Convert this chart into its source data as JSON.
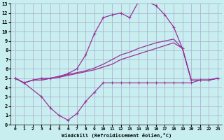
{
  "xlabel": "Windchill (Refroidissement éolien,°C)",
  "background_color": "#c8eef0",
  "grid_color": "#aaaacc",
  "line_color": "#993399",
  "xlim": [
    -0.5,
    23.5
  ],
  "ylim": [
    0,
    13
  ],
  "xticks": [
    0,
    1,
    2,
    3,
    4,
    5,
    6,
    7,
    8,
    9,
    10,
    11,
    12,
    13,
    14,
    15,
    16,
    17,
    18,
    19,
    20,
    21,
    22,
    23
  ],
  "yticks": [
    0,
    1,
    2,
    3,
    4,
    5,
    6,
    7,
    8,
    9,
    10,
    11,
    12,
    13
  ],
  "line1_x": [
    0,
    1,
    2,
    3,
    4,
    5,
    6,
    7,
    8,
    9,
    10,
    11,
    12,
    13,
    14,
    15,
    16,
    17,
    18,
    19,
    20,
    21,
    22,
    23
  ],
  "line1_y": [
    5.0,
    4.5,
    4.8,
    5.0,
    5.0,
    5.2,
    5.5,
    6.0,
    7.5,
    9.8,
    11.5,
    11.8,
    12.0,
    11.5,
    13.2,
    13.2,
    12.8,
    11.8,
    10.5,
    8.2,
    4.8,
    4.8,
    4.8,
    5.0
  ],
  "line2_x": [
    0,
    1,
    3,
    4,
    5,
    6,
    7,
    8,
    9,
    10,
    11,
    12,
    13,
    14,
    15,
    16,
    17,
    18,
    19,
    20,
    21,
    22,
    23
  ],
  "line2_y": [
    5.0,
    4.5,
    3.0,
    1.8,
    1.0,
    0.5,
    1.2,
    2.5,
    3.5,
    4.5,
    4.5,
    4.5,
    4.5,
    4.5,
    4.5,
    4.5,
    4.5,
    4.5,
    4.5,
    4.5,
    4.8,
    4.8,
    5.0
  ],
  "line3_x": [
    0,
    1,
    2,
    3,
    4,
    5,
    6,
    7,
    8,
    9,
    10,
    11,
    12,
    13,
    14,
    15,
    16,
    17,
    18,
    19,
    20,
    21,
    22,
    23
  ],
  "line3_y": [
    5.0,
    4.5,
    4.8,
    4.8,
    5.0,
    5.2,
    5.4,
    5.6,
    5.8,
    6.1,
    6.5,
    7.0,
    7.5,
    7.8,
    8.2,
    8.5,
    8.8,
    9.0,
    9.2,
    8.2,
    4.8,
    4.8,
    4.8,
    5.0
  ],
  "line4_x": [
    0,
    1,
    2,
    3,
    4,
    5,
    6,
    7,
    8,
    9,
    10,
    11,
    12,
    13,
    14,
    15,
    16,
    17,
    18,
    19,
    20,
    21,
    22,
    23
  ],
  "line4_y": [
    5.0,
    4.5,
    4.8,
    4.8,
    5.0,
    5.1,
    5.3,
    5.5,
    5.7,
    5.9,
    6.2,
    6.5,
    7.0,
    7.3,
    7.6,
    7.9,
    8.2,
    8.5,
    8.8,
    8.2,
    4.8,
    4.8,
    4.8,
    5.0
  ]
}
